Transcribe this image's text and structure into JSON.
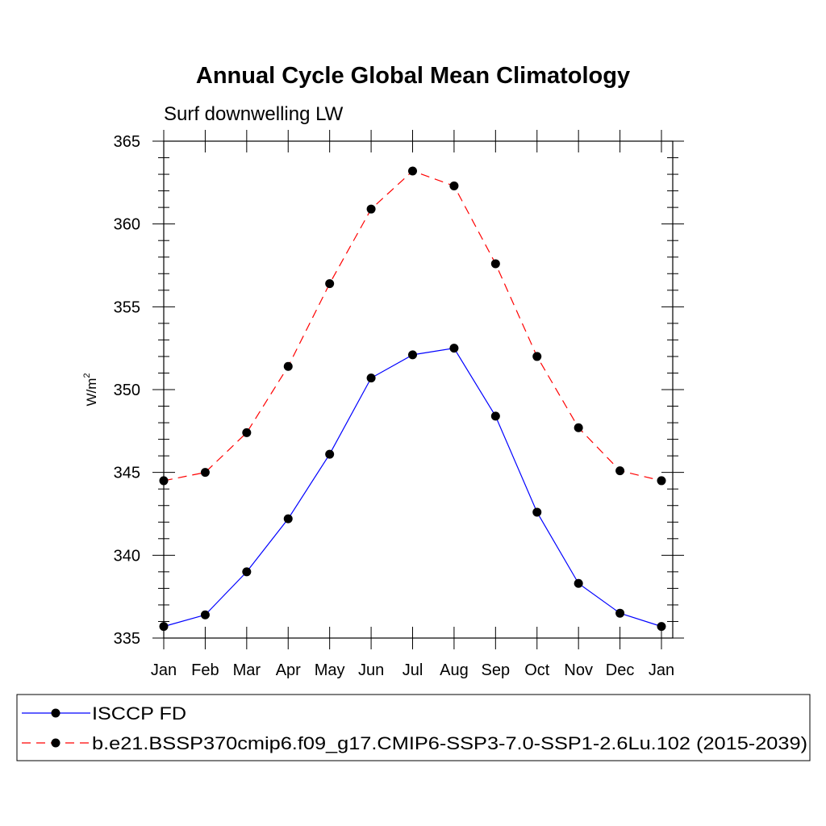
{
  "chart_data": {
    "type": "line",
    "title": "Annual Cycle Global Mean Climatology",
    "subtitle": "Surf downwelling LW",
    "ylabel": "W/m",
    "ylabel_superscript": "2",
    "xlabel": "",
    "categories": [
      "Jan",
      "Feb",
      "Mar",
      "Apr",
      "May",
      "Jun",
      "Jul",
      "Aug",
      "Sep",
      "Oct",
      "Nov",
      "Dec",
      "Jan"
    ],
    "ylim": [
      335,
      365
    ],
    "yticks": [
      335,
      340,
      345,
      350,
      355,
      360,
      365
    ],
    "ytick_labels": [
      "335",
      "340",
      "345",
      "350",
      "355",
      "360",
      "365"
    ],
    "grid": false,
    "legend_position": "bottom",
    "series": [
      {
        "name": "ISCCP FD",
        "color": "#0000ff",
        "dash": "solid",
        "marker": "filled-circle",
        "values": [
          335.7,
          336.4,
          339.0,
          342.2,
          346.1,
          350.7,
          352.1,
          352.5,
          348.4,
          342.6,
          338.3,
          336.5,
          335.7
        ]
      },
      {
        "name": "b.e21.BSSP370cmip6.f09_g17.CMIP6-SSP3-7.0-SSP1-2.6Lu.102 (2015-2039)",
        "color": "#ff0000",
        "dash": "dashed",
        "marker": "filled-circle",
        "values": [
          344.5,
          345.0,
          347.4,
          351.4,
          356.4,
          360.9,
          363.2,
          362.3,
          357.6,
          352.0,
          347.7,
          345.1,
          344.5
        ]
      }
    ]
  }
}
